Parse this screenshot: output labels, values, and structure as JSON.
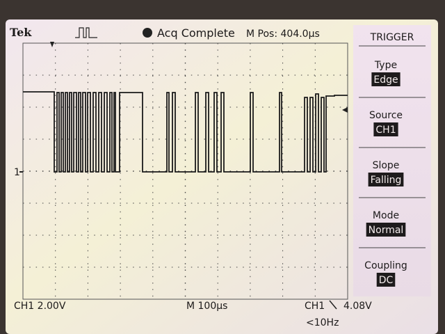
{
  "header": {
    "brand": "Tek",
    "status": "Acq Complete",
    "position": "M Pos: 404.0µs"
  },
  "trace": {
    "marker": "1"
  },
  "menu": {
    "title": "TRIGGER",
    "items": [
      {
        "label": "Type",
        "value": "Edge"
      },
      {
        "label": "Source",
        "value": "CH1"
      },
      {
        "label": "Slope",
        "value": "Falling"
      },
      {
        "label": "Mode",
        "value": "Normal"
      },
      {
        "label": "Coupling",
        "value": "DC"
      }
    ]
  },
  "footer": {
    "channel": "CH1  2.00V",
    "timebase": "M 100µs",
    "trigger_source": "CH1",
    "trigger_level": "4.08V",
    "frequency": "<10Hz"
  }
}
